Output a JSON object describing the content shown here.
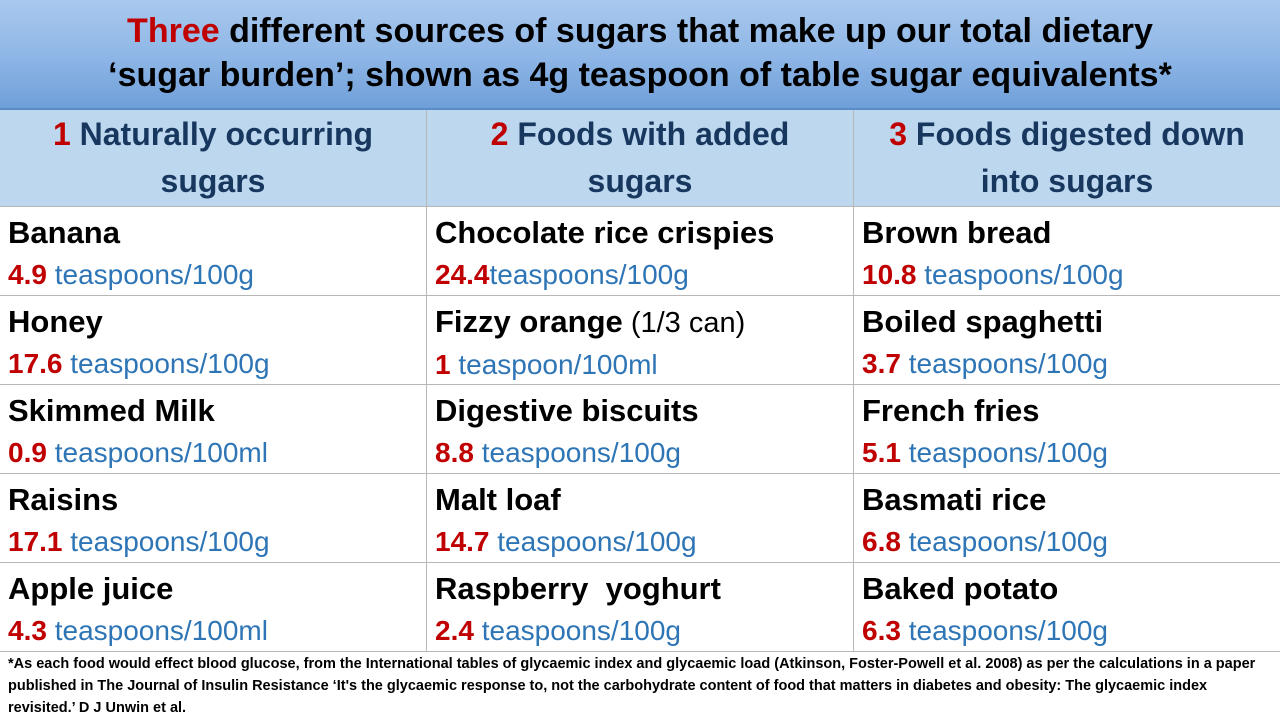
{
  "title": {
    "accent": "Three",
    "line1_rest": " different sources of sugars that make up our total dietary",
    "line2": "‘sugar burden’; shown as 4g teaspoon of table sugar equivalents*"
  },
  "columns": [
    {
      "number": "1",
      "line1": "Naturally occurring",
      "line2": "sugars"
    },
    {
      "number": "2",
      "line1": "Foods with added",
      "line2": "sugars"
    },
    {
      "number": "3",
      "line1": "Foods digested down",
      "line2": "into sugars"
    }
  ],
  "rows": [
    [
      {
        "food": "Banana",
        "value": "4.9",
        "unit": " teaspoons/100g"
      },
      {
        "food": "Chocolate rice crispies",
        "value": "24.4",
        "unit": "teaspoons/100g"
      },
      {
        "food": "Brown bread",
        "value": "10.8",
        "unit": " teaspoons/100g"
      }
    ],
    [
      {
        "food": "Honey",
        "value": "17.6",
        "unit": " teaspoons/100g"
      },
      {
        "food": "Fizzy orange",
        "note": " (1/3 can)",
        "value": "1",
        "unit": " teaspoon/100ml"
      },
      {
        "food": "Boiled spaghetti",
        "value": "3.7",
        "unit": " teaspoons/100g"
      }
    ],
    [
      {
        "food": "Skimmed Milk",
        "value": "0.9",
        "unit": " teaspoons/100ml"
      },
      {
        "food": "Digestive biscuits",
        "value": "8.8",
        "unit": " teaspoons/100g"
      },
      {
        "food": "French fries",
        "value": "5.1",
        "unit": " teaspoons/100g"
      }
    ],
    [
      {
        "food": "Raisins",
        "value": "17.1",
        "unit": " teaspoons/100g"
      },
      {
        "food": "Malt loaf",
        "value": "14.7",
        "unit": " teaspoons/100g"
      },
      {
        "food": "Basmati rice",
        "value": "6.8",
        "unit": " teaspoons/100g"
      }
    ],
    [
      {
        "food": "Apple juice",
        "value": "4.3",
        "unit": " teaspoons/100ml"
      },
      {
        "food": "Raspberry  yoghurt",
        "value": "2.4",
        "unit": " teaspoons/100g"
      },
      {
        "food": "Baked potato",
        "value": "6.3",
        "unit": " teaspoons/100g"
      }
    ]
  ],
  "footnote": "*As each food would effect blood glucose, from the International tables of glycaemic index and glycaemic load (Atkinson, Foster-Powell et al. 2008) as per the calculations in a paper published in The Journal of Insulin Resistance ‘It's the glycaemic response to, not the carbohydrate content of food that matters in diabetes and obesity: The glycaemic index revisited.’ D J Unwin et al.",
  "colors": {
    "accent_red": "#c00000",
    "header_blue_text": "#17375e",
    "unit_blue": "#2e75b6",
    "header_fill": "#bdd7ee",
    "title_fill": "#8db5e6"
  }
}
